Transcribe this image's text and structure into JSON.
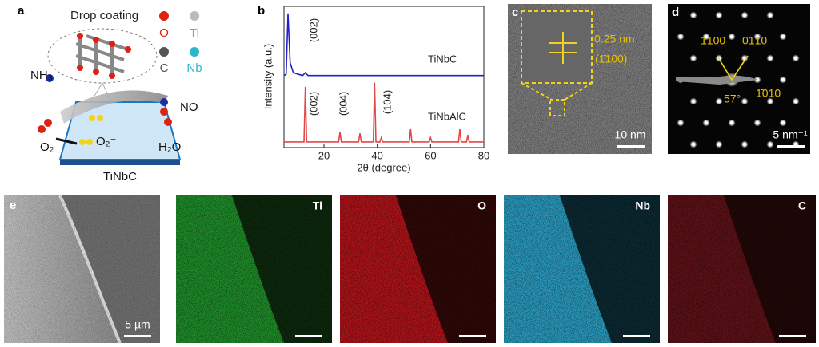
{
  "panel_a": {
    "label": "a",
    "title": "Drop coating",
    "legend": [
      "O",
      "Ti",
      "C",
      "Nb"
    ],
    "species": {
      "nh3": "NH₃",
      "no": "NO",
      "o2": "O₂",
      "o2_minus": "O₂⁻",
      "h2o": "H₂O"
    },
    "substrate": "TiNbC"
  },
  "chart_data": {
    "type": "line",
    "label": "b",
    "x_label": "2θ (degree)",
    "y_label": "Intensity (a.u.)",
    "xlim": [
      5,
      80
    ],
    "xticks": [
      20,
      40,
      60,
      80
    ],
    "ylim": [
      0,
      100
    ],
    "series": [
      {
        "name": "TiNbC",
        "color": "#2222cc",
        "x": [
          5,
          5.8,
          6.5,
          7.3,
          8.5,
          12,
          13,
          14,
          20,
          40,
          60,
          80
        ],
        "values": [
          51,
          52,
          95,
          60,
          53,
          51,
          53,
          51,
          51,
          51,
          51,
          51
        ]
      },
      {
        "name": "TiNbAlC",
        "color": "#e04848",
        "x": [
          5,
          12.5,
          13,
          13.5,
          25.5,
          26,
          26.5,
          33,
          33.5,
          34,
          38.5,
          39,
          39.5,
          41,
          41.5,
          42,
          52,
          52.5,
          53,
          59.5,
          60,
          60.5,
          70.5,
          71,
          71.5,
          73.5,
          74,
          74.5,
          80
        ],
        "values": [
          4,
          4,
          43,
          4,
          4,
          11,
          4,
          4,
          10,
          4,
          4,
          46,
          4,
          4,
          7,
          4,
          4,
          13,
          4,
          4,
          7,
          4,
          4,
          13,
          4,
          4,
          9,
          4,
          4
        ]
      }
    ],
    "annotations": [
      "(002)",
      "(002)",
      "(004)",
      "(104)"
    ]
  },
  "panel_c": {
    "label": "c",
    "spacing": "0.25 nm",
    "plane": "(1̄100)",
    "scale_bar": "10 nm"
  },
  "panel_d": {
    "label": "d",
    "planes": [
      "1̄100",
      "01̄10",
      "1̄010"
    ],
    "angle": "57°",
    "scale_bar": "5 nm⁻¹"
  },
  "panel_e": {
    "label": "e",
    "scale_bar": "5 µm"
  },
  "eds_maps": [
    "Ti",
    "O",
    "Nb",
    "C"
  ]
}
